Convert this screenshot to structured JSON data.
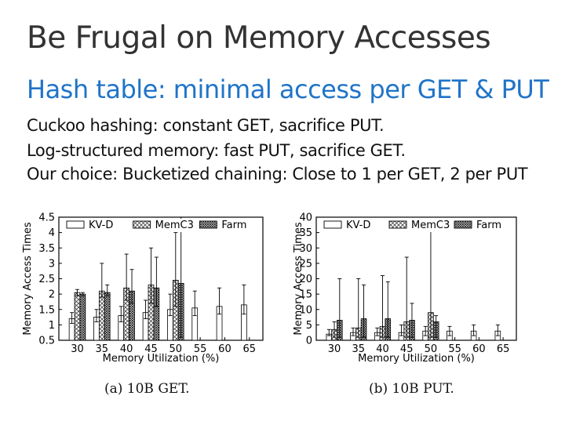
{
  "slide": {
    "title": "Be Frugal on Memory Accesses",
    "subtitle": "Hash table: minimal access per GET & PUT",
    "bullets": [
      "Cuckoo hashing: constant GET, sacrifice PUT.",
      "Log-structured memory: fast PUT, sacrifice GET.",
      "Our choice: Bucketized chaining: Close to 1 per GET, 2 per PUT"
    ]
  },
  "colors": {
    "title": "#333333",
    "subtitle": "#1f74c8",
    "text": "#111111"
  },
  "chart_data": [
    {
      "type": "bar",
      "caption": "(a) 10B GET.",
      "xlabel": "Memory Utilization (%)",
      "ylabel": "Memory Access Times",
      "categories": [
        "30",
        "35",
        "40",
        "45",
        "50",
        "55",
        "60",
        "65"
      ],
      "ylim": [
        0.5,
        4.5
      ],
      "yticks": [
        "0.5",
        "1",
        "1.5",
        "2",
        "2.5",
        "3",
        "3.5",
        "4",
        "4.5"
      ],
      "ytick_values": [
        0.5,
        1,
        1.5,
        2,
        2.5,
        3,
        3.5,
        4,
        4.5
      ],
      "legend": [
        "KV-D",
        "MemC3",
        "Farm"
      ],
      "legend_position": "top",
      "grid": false,
      "series": [
        {
          "name": "KV-D",
          "pattern": "empty",
          "values": [
            1.2,
            1.25,
            1.3,
            1.4,
            1.5,
            1.55,
            1.6,
            1.65
          ],
          "err_low": [
            1.05,
            1.1,
            1.1,
            1.2,
            1.3,
            1.3,
            1.35,
            1.35
          ],
          "err_high": [
            1.4,
            1.5,
            1.6,
            1.8,
            2.0,
            2.1,
            2.2,
            2.3
          ]
        },
        {
          "name": "MemC3",
          "pattern": "crosshatch",
          "values": [
            2.05,
            2.1,
            2.2,
            2.3,
            2.45,
            null,
            null,
            null
          ],
          "err_low": [
            1.95,
            1.9,
            1.8,
            1.7,
            1.6,
            null,
            null,
            null
          ],
          "err_high": [
            2.15,
            3.0,
            3.3,
            3.5,
            4.0,
            null,
            null,
            null
          ]
        },
        {
          "name": "Farm",
          "pattern": "dense-hatch",
          "values": [
            2.0,
            2.05,
            2.1,
            2.2,
            2.35,
            null,
            null,
            null
          ],
          "err_low": [
            1.95,
            1.95,
            1.7,
            1.6,
            0.6,
            null,
            null,
            null
          ],
          "err_high": [
            2.05,
            2.3,
            2.8,
            3.2,
            4.5,
            null,
            null,
            null
          ]
        }
      ]
    },
    {
      "type": "bar",
      "caption": "(b) 10B PUT.",
      "xlabel": "Memory Utilization (%)",
      "ylabel": "Memory Access Times",
      "categories": [
        "30",
        "35",
        "40",
        "45",
        "50",
        "55",
        "60",
        "65"
      ],
      "ylim": [
        0,
        40
      ],
      "yticks": [
        "0",
        "5",
        "10",
        "15",
        "20",
        "25",
        "30",
        "35",
        "40"
      ],
      "ytick_values": [
        0,
        5,
        10,
        15,
        20,
        25,
        30,
        35,
        40
      ],
      "legend": [
        "KV-D",
        "MemC3",
        "Farm"
      ],
      "legend_position": "top",
      "grid": false,
      "series": [
        {
          "name": "KV-D",
          "pattern": "empty",
          "values": [
            2.0,
            2.5,
            2.5,
            2.5,
            3.0,
            3.0,
            3.0,
            3.0
          ],
          "err_low": [
            1.5,
            1.5,
            1.5,
            1.5,
            1.5,
            1.5,
            1.5,
            1.5
          ],
          "err_high": [
            3.5,
            4.0,
            4.0,
            5.0,
            4.5,
            4.5,
            5.0,
            5.0
          ]
        },
        {
          "name": "MemC3",
          "pattern": "crosshatch",
          "values": [
            3.5,
            4.0,
            4.5,
            6.0,
            9.0,
            null,
            null,
            null
          ],
          "err_low": [
            1.0,
            1.0,
            1.0,
            1.0,
            1.0,
            null,
            null,
            null
          ],
          "err_high": [
            6.0,
            20.0,
            21.0,
            27.0,
            36.0,
            null,
            null,
            null
          ]
        },
        {
          "name": "Farm",
          "pattern": "dense-hatch",
          "values": [
            6.5,
            7.0,
            7.0,
            6.5,
            6.0,
            null,
            null,
            null
          ],
          "err_low": [
            1.0,
            1.0,
            1.0,
            1.0,
            1.0,
            null,
            null,
            null
          ],
          "err_high": [
            20.0,
            18.0,
            19.0,
            12.0,
            8.0,
            null,
            null,
            null
          ]
        }
      ]
    }
  ]
}
